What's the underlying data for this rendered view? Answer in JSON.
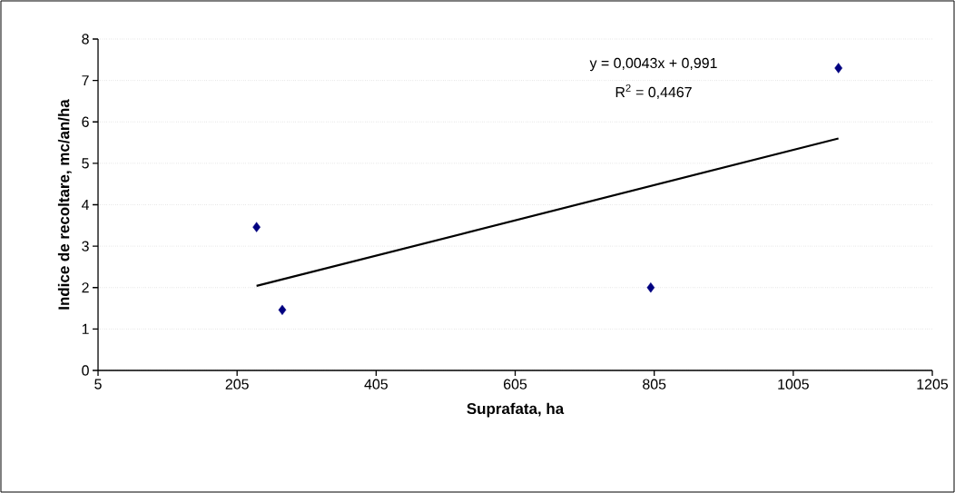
{
  "chart_data": {
    "type": "scatter",
    "xlabel": "Suprafata, ha",
    "ylabel": "Indice de recoltare, mc/an/ha",
    "x": [
      233,
      270,
      800,
      1070
    ],
    "series": [
      {
        "color": "#000080",
        "marker": "diamond",
        "values": [
          3.46,
          1.46,
          2.0,
          7.3
        ]
      },
      {
        "type": "line",
        "color": "#000000",
        "marker": "none",
        "line_style": "solid",
        "x": [
          233,
          1070
        ],
        "values": [
          2.04,
          5.6
        ]
      }
    ],
    "xlim": [
      5,
      1205
    ],
    "xticks": [
      5,
      205,
      405,
      605,
      805,
      1005,
      1205
    ],
    "ylim": [
      0,
      8
    ],
    "yticks": [
      0,
      1,
      2,
      3,
      4,
      5,
      6,
      7,
      8
    ],
    "grid": "y",
    "annotations": [
      "y = 0,0043x + 0,991",
      "R$^{2}$ = 0,4467"
    ]
  }
}
